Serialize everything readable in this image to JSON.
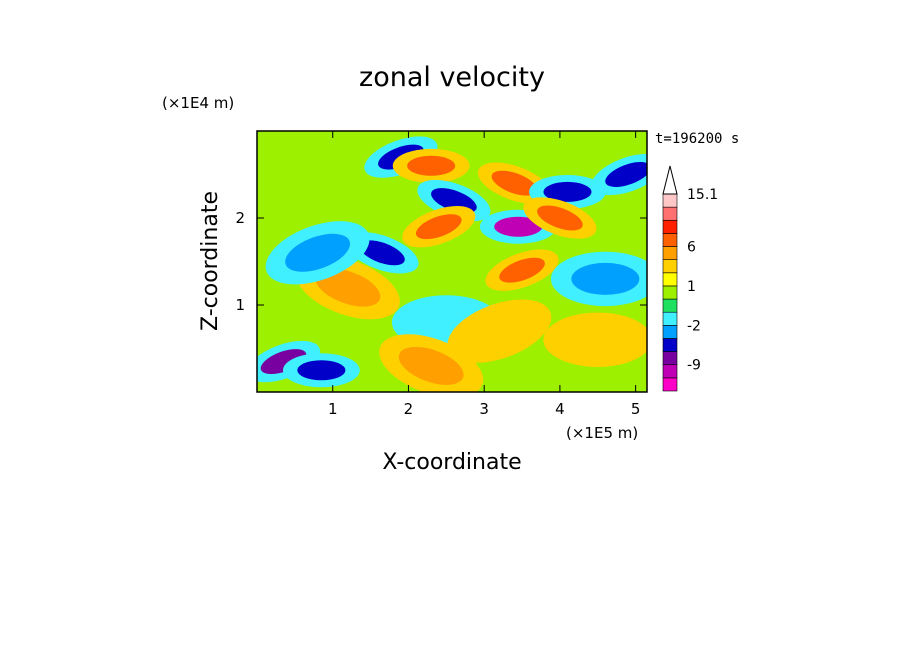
{
  "chart_data": {
    "type": "heatmap",
    "title": "zonal velocity",
    "xlabel": "X-coordinate",
    "ylabel": "Z-coordinate",
    "x_multiplier": "(×1E5 m)",
    "y_multiplier": "(×1E4 m)",
    "time_label": "t=196200 s",
    "xlim": [
      0,
      5.15
    ],
    "ylim": [
      0,
      3.0
    ],
    "x_ticks": [
      "1",
      "2",
      "3",
      "4",
      "5"
    ],
    "y_ticks": [
      "1",
      "2"
    ],
    "colorbar": {
      "levels": [
        -15.1,
        -12,
        -9,
        -6,
        -3,
        -2,
        -1,
        0,
        1,
        2,
        3,
        6,
        9,
        12,
        15.1
      ],
      "labels": [
        "15.1",
        "6",
        "1",
        "-2",
        "-9"
      ],
      "colors": [
        "#ff00c8",
        "#c000b4",
        "#7800a0",
        "#0000c8",
        "#00a0ff",
        "#40f0ff",
        "#20e060",
        "#9cf000",
        "#ffff00",
        "#ffd000",
        "#ffa000",
        "#ff6000",
        "#ff2000",
        "#ff7070",
        "#ffc8c8"
      ],
      "extend_max": true
    },
    "features": [
      {
        "x": 0.35,
        "z": 0.35,
        "value": -9
      },
      {
        "x": 0.85,
        "z": 0.25,
        "value": -6
      },
      {
        "x": 1.65,
        "z": 1.6,
        "value": -6
      },
      {
        "x": 1.9,
        "z": 2.7,
        "value": -6
      },
      {
        "x": 2.3,
        "z": 2.6,
        "value": 6
      },
      {
        "x": 2.6,
        "z": 2.2,
        "value": -6
      },
      {
        "x": 2.4,
        "z": 1.9,
        "value": 6
      },
      {
        "x": 3.45,
        "z": 1.9,
        "value": -12
      },
      {
        "x": 3.4,
        "z": 2.4,
        "value": 6
      },
      {
        "x": 3.5,
        "z": 1.4,
        "value": 6
      },
      {
        "x": 4.1,
        "z": 2.3,
        "value": -6
      },
      {
        "x": 4.0,
        "z": 2.0,
        "value": 6
      },
      {
        "x": 4.9,
        "z": 2.5,
        "value": -6
      },
      {
        "x": 2.5,
        "z": 0.8,
        "value": -2
      },
      {
        "x": 2.3,
        "z": 0.3,
        "value": 3
      },
      {
        "x": 3.2,
        "z": 0.7,
        "value": 2
      },
      {
        "x": 4.5,
        "z": 0.6,
        "value": 2
      },
      {
        "x": 1.2,
        "z": 1.2,
        "value": 3
      },
      {
        "x": 0.8,
        "z": 1.6,
        "value": -3
      },
      {
        "x": 4.6,
        "z": 1.3,
        "value": -3
      }
    ]
  }
}
